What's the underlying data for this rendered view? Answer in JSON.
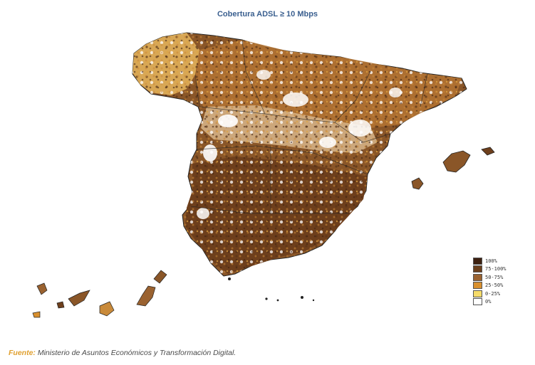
{
  "title": "Cobertura ADSL ≥ 10 Mbps",
  "legend": [
    {
      "label": "100%",
      "color": "#3d2010"
    },
    {
      "label": "75-100%",
      "color": "#6b3f1c"
    },
    {
      "label": "50-75%",
      "color": "#9a6230"
    },
    {
      "label": "25-50%",
      "color": "#d9902e"
    },
    {
      "label": "0-25%",
      "color": "#f6dc6a"
    },
    {
      "label": "0%",
      "color": "#ffffff"
    }
  ],
  "source": {
    "label": "Fuente:",
    "text": " Ministerio de Asuntos Económicos y Transformación Digital."
  },
  "colors": {
    "north_region": "#c98a3a",
    "galicia": "#e3b25a",
    "south_region": "#744420",
    "border": "#222222"
  }
}
